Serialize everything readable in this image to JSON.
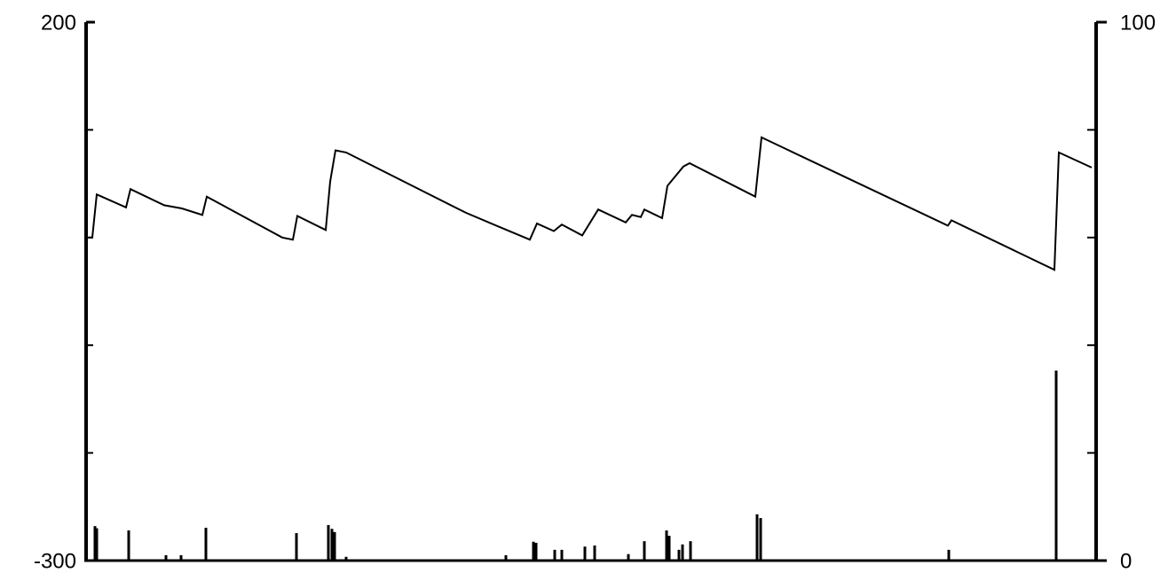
{
  "chart_data": {
    "type": "line_bar",
    "xlim": [
      0,
      1130
    ],
    "ylim": [
      -300,
      200
    ],
    "yticks": [
      -300,
      200
    ],
    "yminor_ticks": [
      -200,
      -100,
      0,
      100
    ],
    "y2lim": [
      0,
      100
    ],
    "y2ticks": [
      0,
      100
    ],
    "y2minor_ticks": [
      20,
      40,
      60,
      80
    ],
    "series": [
      {
        "type": "line",
        "color": "#000000",
        "x": [
          0,
          4,
          9,
          42,
          47,
          85,
          105,
          128,
          133,
          218,
          230,
          235,
          267,
          272,
          278,
          290,
          425,
          468,
          497,
          505,
          524,
          533,
          556,
          574,
          605,
          612,
          622,
          626,
          646,
          652,
          670,
          677,
          751,
          758,
          968,
          972,
          1088,
          1093,
          1130
        ],
        "values": [
          0,
          0,
          40,
          28,
          45,
          30,
          27,
          21,
          38,
          0,
          -2,
          20,
          7,
          52,
          81,
          79,
          23,
          8,
          -2,
          13,
          6,
          12,
          2,
          26,
          14,
          21,
          19,
          26,
          18,
          48,
          66,
          69,
          38,
          93,
          11,
          16,
          -30,
          79,
          65
        ]
      },
      {
        "type": "bar",
        "axis": "y2",
        "color": "#000000",
        "x": [
          7,
          9,
          45,
          87,
          104,
          132,
          234,
          270,
          274,
          277,
          290,
          470,
          501,
          504,
          525,
          533,
          559,
          570,
          608,
          626,
          651,
          654,
          665,
          669,
          678,
          753,
          757,
          969,
          1090
        ],
        "values": [
          6.4,
          6,
          5.6,
          1,
          1,
          6.1,
          5.1,
          6.6,
          5.9,
          5.3,
          0.7,
          1,
          3.5,
          3.3,
          2,
          2,
          2.6,
          2.8,
          1.2,
          3.6,
          5.6,
          4.6,
          2,
          3,
          3.6,
          8.6,
          7.9,
          2,
          35.3
        ]
      }
    ]
  }
}
